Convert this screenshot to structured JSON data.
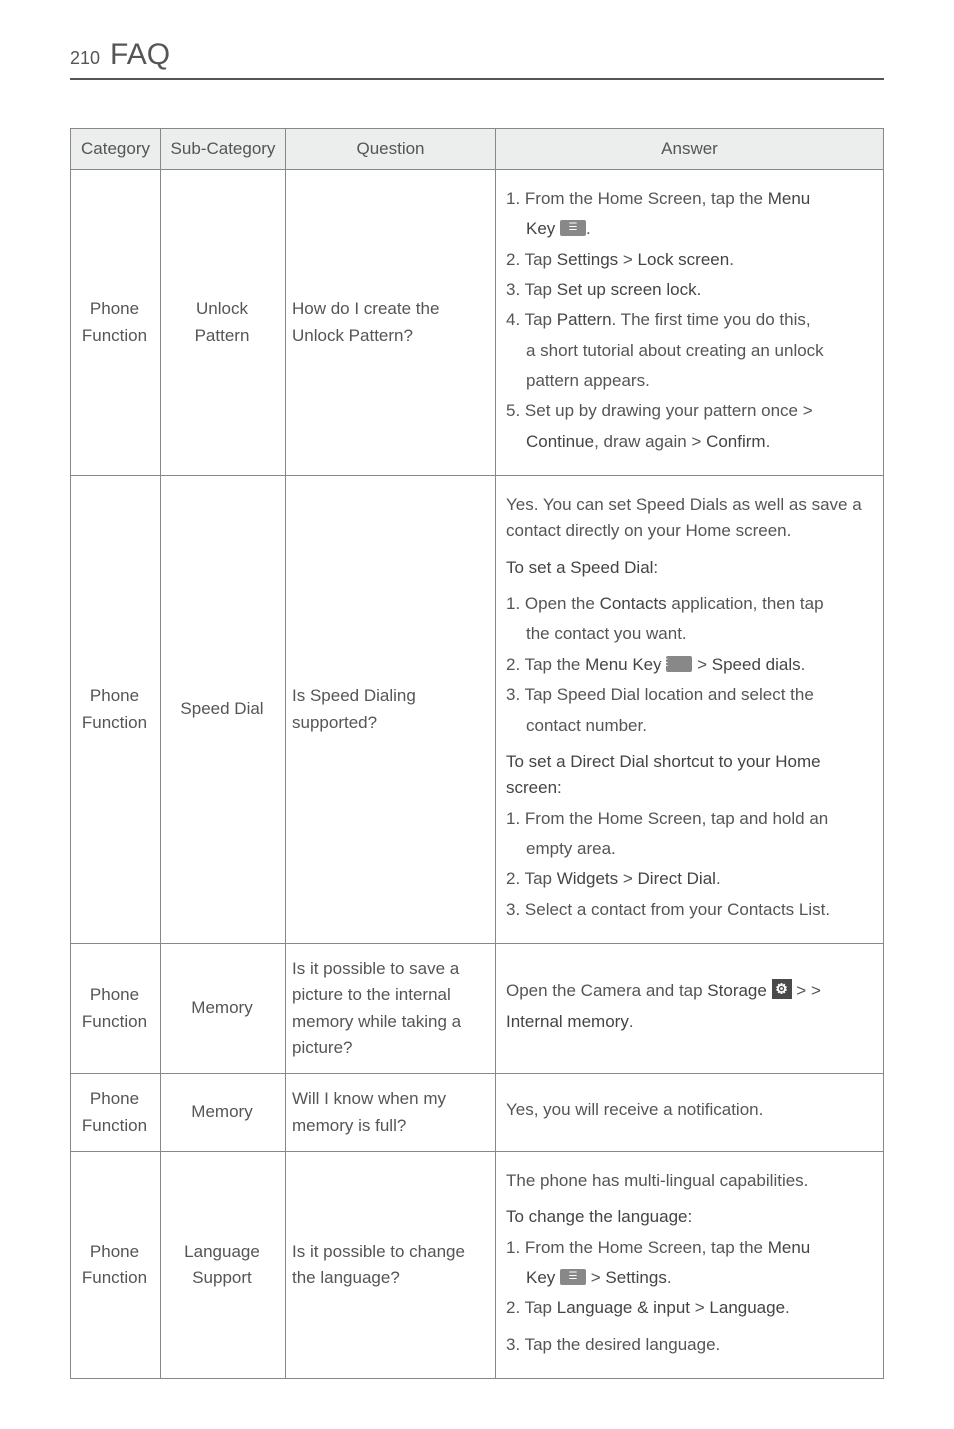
{
  "page": {
    "number": "210",
    "title": "FAQ"
  },
  "table": {
    "headers": [
      "Category",
      "Sub-Category",
      "Question",
      "Answer"
    ],
    "rows": [
      {
        "category": "Phone Function",
        "sub": "Unlock Pattern",
        "question": "How do I create the Unlock Pattern?",
        "answer": {
          "lines": [
            {
              "t": "1. From the Home Screen, tap the ",
              "b1": "Menu",
              "cls": "indent"
            },
            {
              "pre": "",
              "b1": "Key",
              "icon": "block",
              "post": ".",
              "cls": "sub"
            },
            {
              "t": "2. Tap ",
              "b1": "Settings",
              "mid": " > ",
              "b2": "Lock screen",
              "post": ".",
              "cls": "indent"
            },
            {
              "t": "3. Tap ",
              "b1": "Set up screen lock",
              "post": ".",
              "cls": "indent"
            },
            {
              "t": "4. Tap ",
              "b1": "Pattern",
              "post": ". The first time you do this,",
              "cls": "indent"
            },
            {
              "t": "a short tutorial about creating an unlock",
              "cls": "sub"
            },
            {
              "t": "pattern appears.",
              "cls": "sub"
            },
            {
              "t": "5. Set up by drawing your pattern once >",
              "cls": "indent"
            },
            {
              "pre": "",
              "b1": "Continue",
              "mid": ", draw again > ",
              "b2": "Confirm",
              "post": ".",
              "cls": "sub"
            }
          ]
        }
      },
      {
        "category": "Phone Function",
        "sub": "Speed Dial",
        "question": "Is Speed Dialing supported?",
        "answer": {
          "lines": [
            {
              "t": "Yes. You can set Speed Dials as well as save a contact directly on your Home screen."
            },
            {
              "b1": "To set a Speed Dial:",
              "gap": true
            },
            {
              "t": "1. Open the ",
              "b1": "Contacts",
              "post": " application, then tap",
              "cls": "indent",
              "gap": true
            },
            {
              "t": "the contact you want.",
              "cls": "sub"
            },
            {
              "t": "2. Tap the ",
              "b1": "Menu Key",
              "icon": "block",
              "mid": " > ",
              "b2": "Speed dials",
              "post": ".",
              "cls": "indent"
            },
            {
              "t": "3. Tap Speed Dial location and select the",
              "cls": "indent"
            },
            {
              "t": "contact number.",
              "cls": "sub"
            },
            {
              "b1": "To set a Direct Dial shortcut to your Home screen:",
              "gap": true
            },
            {
              "t": "1. From the Home Screen, tap and hold an",
              "cls": "indent"
            },
            {
              "t": "empty area.",
              "cls": "sub"
            },
            {
              "t": "2. Tap ",
              "b1": "Widgets",
              "mid": " > ",
              "b2": "Direct Dial",
              "post": ".",
              "cls": "indent"
            },
            {
              "t": "3. Select a contact from your Contacts List.",
              "cls": "indent"
            }
          ]
        }
      },
      {
        "category": "Phone Function",
        "sub": "Memory",
        "question": "Is it possible to save a picture to the internal memory while taking a picture?",
        "answer": {
          "lines": [
            {
              "t": "Open the Camera and tap ",
              "icon": "gear",
              "mid": " > ",
              "b1": "Storage",
              "post": " >"
            },
            {
              "b1": "Internal memory",
              "post": "."
            }
          ]
        }
      },
      {
        "category": "Phone Function",
        "sub": "Memory",
        "question": "Will I know when my memory is full?",
        "answer": {
          "lines": [
            {
              "t": "Yes, you will receive a notification."
            }
          ]
        }
      },
      {
        "category": "Phone Function",
        "sub": "Language Support",
        "question": "Is it possible to change the language?",
        "answer": {
          "lines": [
            {
              "t": "The phone has multi-lingual capabilities."
            },
            {
              "b1": "To change the language:",
              "gap": true
            },
            {
              "t": "1. From the Home Screen, tap the ",
              "b1": "Menu",
              "cls": "indent"
            },
            {
              "pre": "",
              "b1": "Key",
              "icon": "block",
              "mid": " > ",
              "b2": "Settings",
              "post": ".",
              "cls": "sub"
            },
            {
              "t": "2. Tap ",
              "b1": "Language & input",
              "mid": " > ",
              "b2": "Language",
              "post": ".",
              "cls": "indent"
            },
            {
              "t": "3. Tap the desired language.",
              "cls": "indent",
              "gap": true
            }
          ]
        }
      }
    ]
  }
}
